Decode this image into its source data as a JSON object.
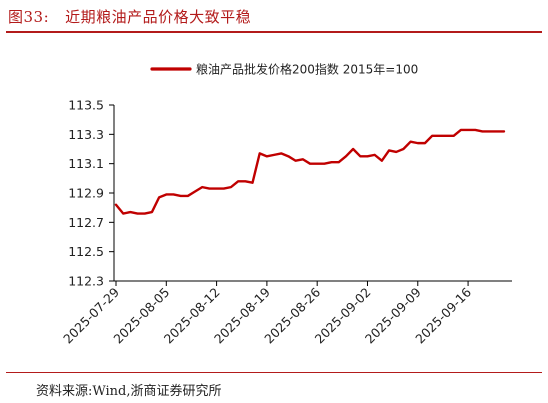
{
  "header": {
    "figure_number": "图33:",
    "title": "近期粮油产品价格大致平稳"
  },
  "footer": {
    "source": "资料来源:Wind,浙商证券研究所"
  },
  "colors": {
    "accent": "#b31b1b",
    "series": "#c00000",
    "axis": "#000000",
    "text": "#222222"
  },
  "chart_data": {
    "type": "line",
    "legend_position": "top-center",
    "grid": false,
    "ylim": [
      112.3,
      113.5
    ],
    "yticks": [
      "112.3",
      "112.5",
      "112.7",
      "112.9",
      "113.1",
      "113.3",
      "113.5"
    ],
    "xtick_labels": [
      "2025-07-29",
      "2025-08-05",
      "2025-08-12",
      "2025-08-19",
      "2025-08-26",
      "2025-09-02",
      "2025-09-09",
      "2025-09-16"
    ],
    "x": [
      "2025-07-29",
      "2025-07-30",
      "2025-07-31",
      "2025-08-01",
      "2025-08-02",
      "2025-08-03",
      "2025-08-04",
      "2025-08-05",
      "2025-08-06",
      "2025-08-07",
      "2025-08-08",
      "2025-08-09",
      "2025-08-10",
      "2025-08-11",
      "2025-08-12",
      "2025-08-13",
      "2025-08-14",
      "2025-08-15",
      "2025-08-16",
      "2025-08-17",
      "2025-08-18",
      "2025-08-19",
      "2025-08-20",
      "2025-08-21",
      "2025-08-22",
      "2025-08-23",
      "2025-08-24",
      "2025-08-25",
      "2025-08-26",
      "2025-08-27",
      "2025-08-28",
      "2025-08-29",
      "2025-08-30",
      "2025-08-31",
      "2025-09-01",
      "2025-09-02",
      "2025-09-03",
      "2025-09-04",
      "2025-09-05",
      "2025-09-06",
      "2025-09-07",
      "2025-09-08",
      "2025-09-09",
      "2025-09-10",
      "2025-09-11",
      "2025-09-12",
      "2025-09-13",
      "2025-09-14",
      "2025-09-15",
      "2025-09-16",
      "2025-09-17",
      "2025-09-18",
      "2025-09-19",
      "2025-09-20",
      "2025-09-21"
    ],
    "series": [
      {
        "name": "粮油产品批发价格200指数 2015年=100",
        "color": "#c00000",
        "values": [
          112.82,
          112.76,
          112.77,
          112.76,
          112.76,
          112.77,
          112.87,
          112.89,
          112.89,
          112.88,
          112.88,
          112.91,
          112.94,
          112.93,
          112.93,
          112.93,
          112.94,
          112.98,
          112.98,
          112.97,
          113.17,
          113.15,
          113.16,
          113.17,
          113.15,
          113.12,
          113.13,
          113.1,
          113.1,
          113.1,
          113.11,
          113.11,
          113.15,
          113.2,
          113.15,
          113.15,
          113.16,
          113.12,
          113.19,
          113.18,
          113.2,
          113.25,
          113.24,
          113.24,
          113.29,
          113.29,
          113.29,
          113.29,
          113.33,
          113.33,
          113.33,
          113.32,
          113.32,
          113.32,
          113.32
        ]
      }
    ]
  }
}
